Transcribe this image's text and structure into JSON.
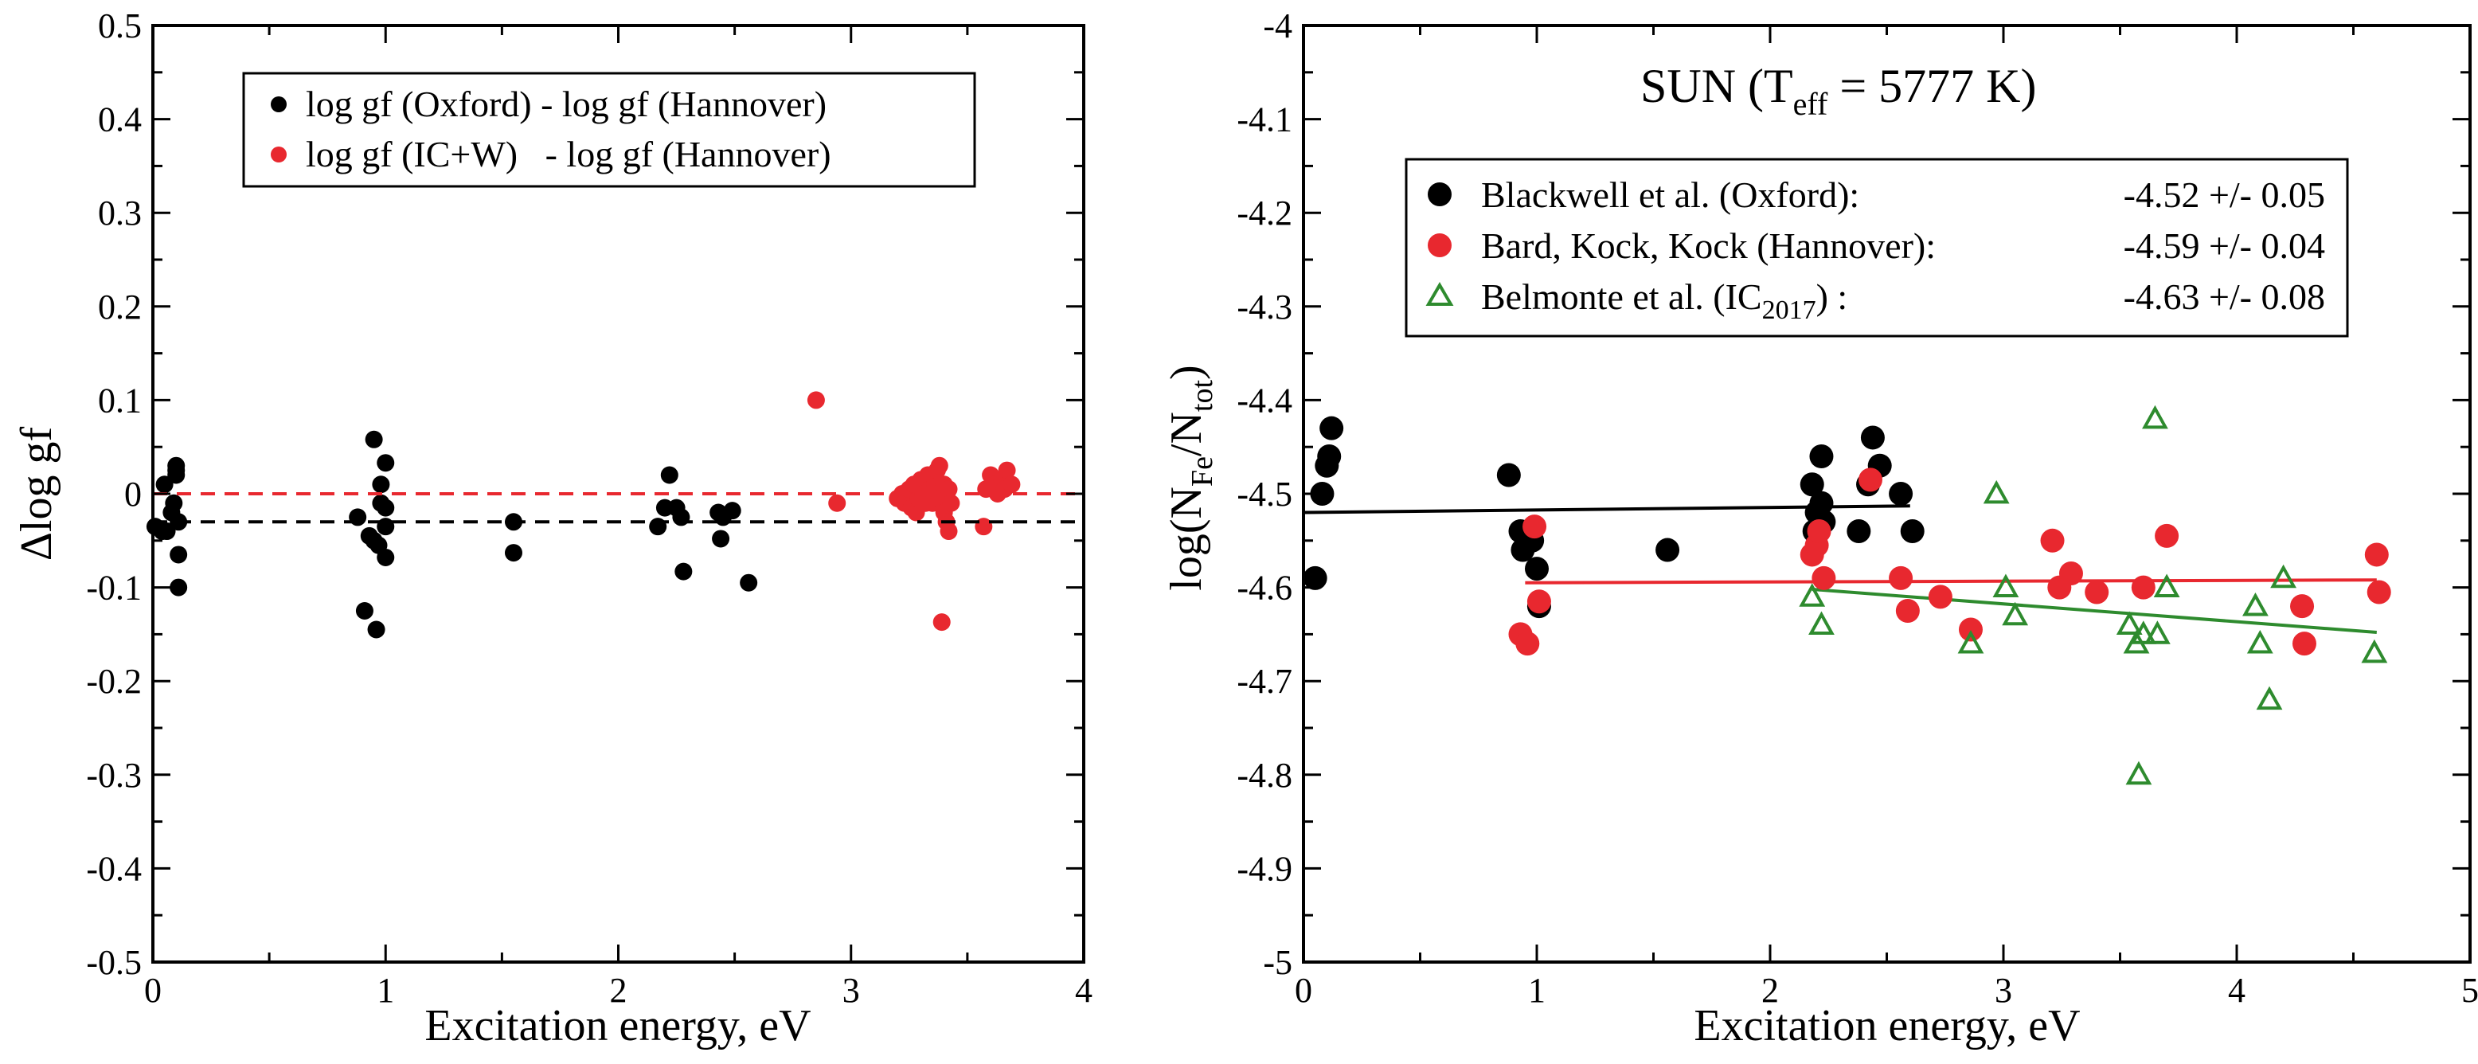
{
  "chart_data": [
    {
      "type": "scatter",
      "xlabel": "Excitation  energy, eV",
      "ylabel": "Δlog gf",
      "xlim": [
        0,
        4
      ],
      "ylim": [
        -0.5,
        0.5
      ],
      "xticks": [
        0,
        1,
        2,
        3,
        4
      ],
      "xtick_labels": [
        "0",
        "1",
        "2",
        "3",
        "4"
      ],
      "yticks": [
        -0.5,
        -0.4,
        -0.3,
        -0.2,
        -0.1,
        0,
        0.1,
        0.2,
        0.3,
        0.4,
        0.5
      ],
      "ytick_labels": [
        "-0.5",
        "-0.4",
        "-0.3",
        "-0.2",
        "-0.1",
        "0",
        "0.1",
        "0.2",
        "0.3",
        "0.4",
        "0.5"
      ],
      "legend_position": "top",
      "series": [
        {
          "name": "log gf (Oxford) - log gf (Hannover)",
          "color": "#000000",
          "marker": "dot",
          "mean_line": -0.03,
          "points": [
            [
              0.01,
              -0.035
            ],
            [
              0.04,
              -0.04
            ],
            [
              0.05,
              0.01
            ],
            [
              0.06,
              -0.04
            ],
            [
              0.08,
              -0.02
            ],
            [
              0.09,
              -0.01
            ],
            [
              0.1,
              0.025
            ],
            [
              0.1,
              0.03
            ],
            [
              0.1,
              0.02
            ],
            [
              0.11,
              -0.03
            ],
            [
              0.11,
              -0.065
            ],
            [
              0.11,
              -0.1
            ],
            [
              0.88,
              -0.025
            ],
            [
              0.91,
              -0.125
            ],
            [
              0.93,
              -0.045
            ],
            [
              0.95,
              -0.05
            ],
            [
              0.95,
              0.058
            ],
            [
              0.96,
              -0.145
            ],
            [
              0.97,
              -0.055
            ],
            [
              0.98,
              -0.01
            ],
            [
              0.98,
              0.01
            ],
            [
              1.0,
              0.033
            ],
            [
              1.0,
              -0.035
            ],
            [
              1.0,
              -0.015
            ],
            [
              1.0,
              -0.068
            ],
            [
              1.55,
              -0.03
            ],
            [
              1.55,
              -0.063
            ],
            [
              2.17,
              -0.035
            ],
            [
              2.2,
              -0.015
            ],
            [
              2.22,
              0.02
            ],
            [
              2.25,
              -0.015
            ],
            [
              2.27,
              -0.025
            ],
            [
              2.28,
              -0.083
            ],
            [
              2.43,
              -0.02
            ],
            [
              2.44,
              -0.048
            ],
            [
              2.45,
              -0.025
            ],
            [
              2.49,
              -0.018
            ],
            [
              2.56,
              -0.095
            ]
          ]
        },
        {
          "name": "log gf (IC+W)   - log gf (Hannover)",
          "color": "#e8282f",
          "marker": "dot",
          "mean_line": 0.0,
          "points": [
            [
              2.85,
              0.1
            ],
            [
              2.94,
              -0.01
            ],
            [
              3.2,
              -0.005
            ],
            [
              3.22,
              0.0
            ],
            [
              3.23,
              -0.01
            ],
            [
              3.25,
              0.005
            ],
            [
              3.26,
              -0.015
            ],
            [
              3.27,
              0.01
            ],
            [
              3.28,
              -0.02
            ],
            [
              3.29,
              -0.005
            ],
            [
              3.3,
              0.015
            ],
            [
              3.31,
              0.0
            ],
            [
              3.32,
              -0.01
            ],
            [
              3.33,
              0.02
            ],
            [
              3.34,
              0.005
            ],
            [
              3.35,
              -0.01
            ],
            [
              3.36,
              0.01
            ],
            [
              3.37,
              0.025
            ],
            [
              3.38,
              -0.005
            ],
            [
              3.38,
              0.03
            ],
            [
              3.39,
              -0.137
            ],
            [
              3.4,
              -0.02
            ],
            [
              3.4,
              0.01
            ],
            [
              3.41,
              -0.03
            ],
            [
              3.42,
              -0.04
            ],
            [
              3.42,
              0.005
            ],
            [
              3.43,
              -0.01
            ],
            [
              3.57,
              -0.035
            ],
            [
              3.58,
              0.005
            ],
            [
              3.6,
              0.02
            ],
            [
              3.62,
              0.01
            ],
            [
              3.63,
              0.0
            ],
            [
              3.65,
              0.015
            ],
            [
              3.66,
              0.005
            ],
            [
              3.67,
              0.025
            ],
            [
              3.69,
              0.01
            ]
          ]
        }
      ]
    },
    {
      "type": "scatter",
      "title": "SUN (T",
      "title_sub": "eff",
      "title_rest": " = 5777 K)",
      "xlabel": "Excitation energy, eV",
      "ylabel": "log(N",
      "ylabel_sub1": "Fe",
      "ylabel_mid": "/N",
      "ylabel_sub2": "tot",
      "ylabel_end": ")",
      "xlim": [
        0,
        5
      ],
      "ylim": [
        -5,
        -4
      ],
      "xticks": [
        0,
        1,
        2,
        3,
        4,
        5
      ],
      "xtick_labels": [
        "0",
        "1",
        "2",
        "3",
        "4",
        "5"
      ],
      "yticks": [
        -5,
        -4.9,
        -4.8,
        -4.7,
        -4.6,
        -4.5,
        -4.4,
        -4.3,
        -4.2,
        -4.1,
        -4
      ],
      "ytick_labels": [
        "-5",
        "-4.9",
        "-4.8",
        "-4.7",
        "-4.6",
        "-4.5",
        "-4.4",
        "-4.3",
        "-4.2",
        "-4.1",
        "-4"
      ],
      "legend_position": "top",
      "series": [
        {
          "name": "Blackwell et al. (Oxford):",
          "value": "-4.52 +/- 0.05",
          "color": "#000000",
          "marker": "dot",
          "fit": [
            [
              0.0,
              -4.52
            ],
            [
              2.6,
              -4.513
            ]
          ],
          "points": [
            [
              0.05,
              -4.59
            ],
            [
              0.08,
              -4.5
            ],
            [
              0.1,
              -4.47
            ],
            [
              0.11,
              -4.46
            ],
            [
              0.12,
              -4.43
            ],
            [
              0.88,
              -4.48
            ],
            [
              0.93,
              -4.54
            ],
            [
              0.94,
              -4.56
            ],
            [
              0.98,
              -4.55
            ],
            [
              1.0,
              -4.58
            ],
            [
              1.01,
              -4.62
            ],
            [
              1.56,
              -4.56
            ],
            [
              2.18,
              -4.49
            ],
            [
              2.19,
              -4.54
            ],
            [
              2.2,
              -4.52
            ],
            [
              2.22,
              -4.46
            ],
            [
              2.22,
              -4.51
            ],
            [
              2.23,
              -4.53
            ],
            [
              2.38,
              -4.54
            ],
            [
              2.42,
              -4.49
            ],
            [
              2.44,
              -4.44
            ],
            [
              2.47,
              -4.47
            ],
            [
              2.56,
              -4.5
            ],
            [
              2.61,
              -4.54
            ]
          ]
        },
        {
          "name": "Bard, Kock, Kock (Hannover):",
          "value": "-4.59 +/- 0.04",
          "color": "#e8282f",
          "marker": "dot",
          "fit": [
            [
              0.95,
              -4.595
            ],
            [
              4.6,
              -4.592
            ]
          ],
          "points": [
            [
              0.93,
              -4.65
            ],
            [
              0.96,
              -4.66
            ],
            [
              0.99,
              -4.535
            ],
            [
              1.01,
              -4.615
            ],
            [
              2.18,
              -4.565
            ],
            [
              2.2,
              -4.555
            ],
            [
              2.21,
              -4.54
            ],
            [
              2.23,
              -4.59
            ],
            [
              2.43,
              -4.485
            ],
            [
              2.56,
              -4.59
            ],
            [
              2.59,
              -4.625
            ],
            [
              2.73,
              -4.61
            ],
            [
              2.86,
              -4.645
            ],
            [
              3.21,
              -4.55
            ],
            [
              3.24,
              -4.6
            ],
            [
              3.29,
              -4.585
            ],
            [
              3.4,
              -4.605
            ],
            [
              3.6,
              -4.6
            ],
            [
              3.7,
              -4.545
            ],
            [
              4.28,
              -4.62
            ],
            [
              4.29,
              -4.66
            ],
            [
              4.6,
              -4.565
            ],
            [
              4.61,
              -4.605
            ]
          ]
        },
        {
          "name": "Belmonte et al. (IC",
          "name_sub": "2017",
          "name_end": ") :",
          "value": "-4.63 +/- 0.08",
          "color": "#2e8b2e",
          "marker": "triangle",
          "fit": [
            [
              2.18,
              -4.602
            ],
            [
              4.6,
              -4.648
            ]
          ],
          "points": [
            [
              2.18,
              -4.61
            ],
            [
              2.22,
              -4.64
            ],
            [
              2.86,
              -4.66
            ],
            [
              2.97,
              -4.5
            ],
            [
              3.01,
              -4.6
            ],
            [
              3.05,
              -4.63
            ],
            [
              3.54,
              -4.64
            ],
            [
              3.57,
              -4.66
            ],
            [
              3.58,
              -4.8
            ],
            [
              3.6,
              -4.65
            ],
            [
              3.65,
              -4.42
            ],
            [
              3.66,
              -4.65
            ],
            [
              3.7,
              -4.6
            ],
            [
              4.08,
              -4.62
            ],
            [
              4.1,
              -4.66
            ],
            [
              4.14,
              -4.72
            ],
            [
              4.2,
              -4.59
            ],
            [
              4.59,
              -4.67
            ]
          ]
        }
      ]
    }
  ]
}
